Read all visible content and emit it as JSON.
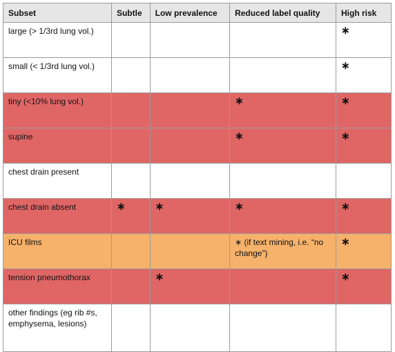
{
  "colors": {
    "red": "#e06666",
    "orange": "#f6b26b",
    "white": "#ffffff",
    "header": "#e6e6e6"
  },
  "headers": [
    "Subset",
    "Subtle",
    "Low prevalence",
    "Reduced label quality",
    "High risk"
  ],
  "rows": [
    {
      "subset": "large (> 1/3rd lung vol.)",
      "subtle": "",
      "low_prevalence": "",
      "reduced_label_quality": "",
      "high_risk": "∗",
      "color": "white"
    },
    {
      "subset": "small (< 1/3rd lung vol.)",
      "subtle": "",
      "low_prevalence": "",
      "reduced_label_quality": "",
      "high_risk": "∗",
      "color": "white"
    },
    {
      "subset": "tiny (<10% lung vol.)",
      "subtle": "",
      "low_prevalence": "",
      "reduced_label_quality": "∗",
      "high_risk": "∗",
      "color": "red"
    },
    {
      "subset": "supine",
      "subtle": "",
      "low_prevalence": "",
      "reduced_label_quality": "∗",
      "high_risk": "∗",
      "color": "red"
    },
    {
      "subset": "chest drain present",
      "subtle": "",
      "low_prevalence": "",
      "reduced_label_quality": "",
      "high_risk": "",
      "color": "white"
    },
    {
      "subset": "chest drain absent",
      "subtle": "∗",
      "low_prevalence": "∗",
      "reduced_label_quality": "∗",
      "high_risk": "∗",
      "color": "red"
    },
    {
      "subset": "ICU films",
      "subtle": "",
      "low_prevalence": "",
      "reduced_label_quality": "∗ (if text mining, i.e. “no change”)",
      "high_risk": "∗",
      "color": "orange"
    },
    {
      "subset": "tension pneumothorax",
      "subtle": "",
      "low_prevalence": "∗",
      "reduced_label_quality": "",
      "high_risk": "∗",
      "color": "red"
    },
    {
      "subset": "other findings (eg rib #s, emphysema, lesions)",
      "subtle": "",
      "low_prevalence": "",
      "reduced_label_quality": "",
      "high_risk": "",
      "color": "white"
    }
  ]
}
